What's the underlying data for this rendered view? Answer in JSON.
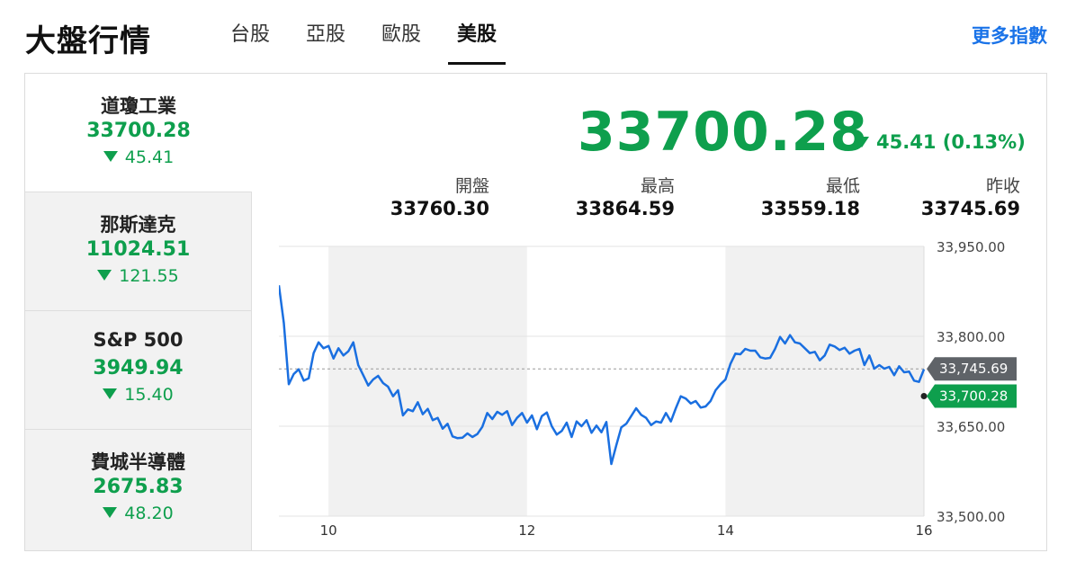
{
  "header": {
    "title": "大盤行情",
    "tabs": [
      {
        "label": "台股",
        "active": false
      },
      {
        "label": "亞股",
        "active": false
      },
      {
        "label": "歐股",
        "active": false
      },
      {
        "label": "美股",
        "active": true
      }
    ],
    "more_link": "更多指數"
  },
  "indices": [
    {
      "name": "道瓊工業",
      "value": "33700.28",
      "change": "45.41",
      "selected": true
    },
    {
      "name": "那斯達克",
      "value": "11024.51",
      "change": "121.55",
      "selected": false
    },
    {
      "name": "S&P 500",
      "value": "3949.94",
      "change": "15.40",
      "selected": false
    },
    {
      "name": "費城半導體",
      "value": "2675.83",
      "change": "48.20",
      "selected": false
    }
  ],
  "detail": {
    "price": "33700.28",
    "change": "45.41 (0.13%)",
    "stats": [
      {
        "label": "開盤",
        "value": "33760.30"
      },
      {
        "label": "最高",
        "value": "33864.59"
      },
      {
        "label": "最低",
        "value": "33559.18"
      },
      {
        "label": "昨收",
        "value": "33745.69"
      }
    ]
  },
  "colors": {
    "down": "#0e9f4d",
    "line": "#1a6fe0",
    "link": "#1a73e8",
    "prev_close_tag": "#5f6368"
  },
  "chart_data": {
    "type": "line",
    "x_ticks": [
      "10",
      "12",
      "14",
      "16"
    ],
    "y_ticks": [
      "33,950.00",
      "33,800.00",
      "33,650.00",
      "33,500.00"
    ],
    "ylim": [
      33500,
      33950
    ],
    "xlim": [
      9.5,
      16
    ],
    "reference_line": {
      "label": "33,745.69",
      "value": 33745.69
    },
    "last_price_label": "33,700.28",
    "last_value": 33700.28,
    "shaded_bands": [
      [
        10,
        12
      ],
      [
        14,
        16
      ]
    ],
    "series": [
      {
        "values": [
          [
            9.5,
            33885
          ],
          [
            9.55,
            33822
          ],
          [
            9.6,
            33720
          ],
          [
            9.65,
            33737
          ],
          [
            9.7,
            33745
          ],
          [
            9.75,
            33726
          ],
          [
            9.8,
            33730
          ],
          [
            9.85,
            33772
          ],
          [
            9.9,
            33790
          ],
          [
            9.95,
            33780
          ],
          [
            10.0,
            33784
          ],
          [
            10.05,
            33763
          ],
          [
            10.1,
            33780
          ],
          [
            10.15,
            33768
          ],
          [
            10.2,
            33775
          ],
          [
            10.25,
            33790
          ],
          [
            10.3,
            33752
          ],
          [
            10.35,
            33735
          ],
          [
            10.4,
            33718
          ],
          [
            10.45,
            33728
          ],
          [
            10.5,
            33734
          ],
          [
            10.55,
            33722
          ],
          [
            10.6,
            33716
          ],
          [
            10.65,
            33700
          ],
          [
            10.7,
            33710
          ],
          [
            10.75,
            33668
          ],
          [
            10.8,
            33678
          ],
          [
            10.85,
            33675
          ],
          [
            10.9,
            33690
          ],
          [
            10.95,
            33670
          ],
          [
            11.0,
            33679
          ],
          [
            11.05,
            33660
          ],
          [
            11.1,
            33664
          ],
          [
            11.15,
            33646
          ],
          [
            11.2,
            33654
          ],
          [
            11.25,
            33633
          ],
          [
            11.3,
            33630
          ],
          [
            11.35,
            33631
          ],
          [
            11.4,
            33638
          ],
          [
            11.45,
            33632
          ],
          [
            11.5,
            33637
          ],
          [
            11.55,
            33649
          ],
          [
            11.6,
            33672
          ],
          [
            11.65,
            33662
          ],
          [
            11.7,
            33674
          ],
          [
            11.75,
            33669
          ],
          [
            11.8,
            33675
          ],
          [
            11.85,
            33652
          ],
          [
            11.9,
            33664
          ],
          [
            11.95,
            33672
          ],
          [
            12.0,
            33656
          ],
          [
            12.05,
            33668
          ],
          [
            12.1,
            33645
          ],
          [
            12.15,
            33667
          ],
          [
            12.2,
            33673
          ],
          [
            12.25,
            33650
          ],
          [
            12.3,
            33636
          ],
          [
            12.35,
            33642
          ],
          [
            12.4,
            33656
          ],
          [
            12.45,
            33632
          ],
          [
            12.5,
            33658
          ],
          [
            12.55,
            33650
          ],
          [
            12.6,
            33660
          ],
          [
            12.65,
            33639
          ],
          [
            12.7,
            33651
          ],
          [
            12.75,
            33640
          ],
          [
            12.8,
            33657
          ],
          [
            12.85,
            33587
          ],
          [
            12.9,
            33618
          ],
          [
            12.95,
            33648
          ],
          [
            13.0,
            33654
          ],
          [
            13.05,
            33667
          ],
          [
            13.1,
            33680
          ],
          [
            13.15,
            33669
          ],
          [
            13.2,
            33664
          ],
          [
            13.25,
            33652
          ],
          [
            13.3,
            33658
          ],
          [
            13.35,
            33656
          ],
          [
            13.4,
            33672
          ],
          [
            13.45,
            33658
          ],
          [
            13.5,
            33680
          ],
          [
            13.55,
            33700
          ],
          [
            13.6,
            33696
          ],
          [
            13.65,
            33688
          ],
          [
            13.7,
            33692
          ],
          [
            13.75,
            33681
          ],
          [
            13.8,
            33683
          ],
          [
            13.85,
            33692
          ],
          [
            13.9,
            33710
          ],
          [
            13.95,
            33720
          ],
          [
            14.0,
            33728
          ],
          [
            14.05,
            33754
          ],
          [
            14.1,
            33771
          ],
          [
            14.15,
            33770
          ],
          [
            14.2,
            33779
          ],
          [
            14.25,
            33776
          ],
          [
            14.3,
            33776
          ],
          [
            14.35,
            33765
          ],
          [
            14.4,
            33763
          ],
          [
            14.45,
            33764
          ],
          [
            14.5,
            33779
          ],
          [
            14.55,
            33799
          ],
          [
            14.6,
            33788
          ],
          [
            14.65,
            33802
          ],
          [
            14.7,
            33790
          ],
          [
            14.75,
            33788
          ],
          [
            14.8,
            33780
          ],
          [
            14.85,
            33772
          ],
          [
            14.9,
            33774
          ],
          [
            14.95,
            33760
          ],
          [
            15.0,
            33768
          ],
          [
            15.05,
            33786
          ],
          [
            15.1,
            33783
          ],
          [
            15.15,
            33777
          ],
          [
            15.2,
            33781
          ],
          [
            15.25,
            33771
          ],
          [
            15.3,
            33776
          ],
          [
            15.35,
            33779
          ],
          [
            15.4,
            33752
          ],
          [
            15.45,
            33768
          ],
          [
            15.5,
            33746
          ],
          [
            15.55,
            33752
          ],
          [
            15.6,
            33746
          ],
          [
            15.65,
            33749
          ],
          [
            15.7,
            33735
          ],
          [
            15.75,
            33750
          ],
          [
            15.8,
            33740
          ],
          [
            15.85,
            33741
          ],
          [
            15.9,
            33726
          ],
          [
            15.95,
            33724
          ],
          [
            16.0,
            33745
          ]
        ]
      }
    ]
  }
}
